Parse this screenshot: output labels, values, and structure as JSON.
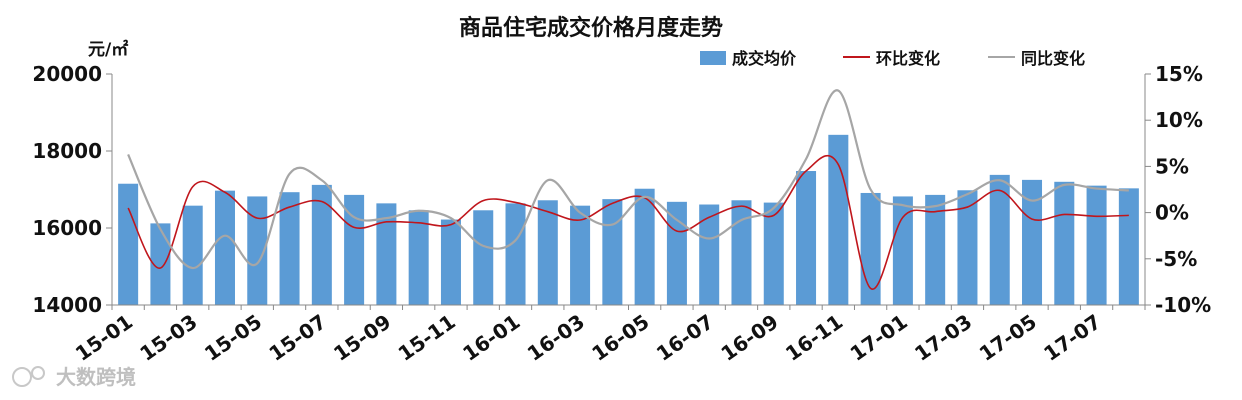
{
  "chart_data": {
    "type": "bar",
    "title": "商品住宅成交价格月度走势",
    "ylabel": "元/㎡",
    "ylim": [
      14000,
      20000
    ],
    "yticks": [
      "14000",
      "16000",
      "18000",
      "20000"
    ],
    "y2lim": [
      -10,
      15
    ],
    "y2ticks": [
      "-10%",
      "-5%",
      "0%",
      "5%",
      "10%",
      "15%"
    ],
    "categories": [
      "15-01",
      "15-02",
      "15-03",
      "15-04",
      "15-05",
      "15-06",
      "15-07",
      "15-08",
      "15-09",
      "15-10",
      "15-11",
      "15-12",
      "16-01",
      "16-02",
      "16-03",
      "16-04",
      "16-05",
      "16-06",
      "16-07",
      "16-08",
      "16-09",
      "16-10",
      "16-11",
      "16-12",
      "17-01",
      "17-02",
      "17-03",
      "17-04",
      "17-05",
      "17-06",
      "17-07",
      "17-08"
    ],
    "xtick_labels": [
      "15-01",
      "15-03",
      "15-05",
      "15-07",
      "15-09",
      "15-11",
      "16-01",
      "16-03",
      "16-05",
      "16-07",
      "16-09",
      "16-11",
      "17-01",
      "17-03",
      "17-05",
      "17-07"
    ],
    "legend": [
      "成交均价",
      "环比变化",
      "同比变化"
    ],
    "legend_position": "top-right",
    "series": [
      {
        "name": "成交均价",
        "type": "bar",
        "axis": "left",
        "color": "#5b9bd5",
        "values": [
          17150,
          16120,
          16580,
          16970,
          16820,
          16930,
          17120,
          16860,
          16640,
          16460,
          16220,
          16460,
          16640,
          16720,
          16580,
          16750,
          17020,
          16680,
          16610,
          16720,
          16660,
          17480,
          18420,
          16910,
          16820,
          16860,
          16980,
          17380,
          17250,
          17200,
          17100,
          17030
        ]
      },
      {
        "name": "环比变化",
        "type": "line",
        "axis": "right",
        "color": "#c0161c",
        "values": [
          0.5,
          -6.0,
          2.8,
          2.2,
          -0.6,
          0.6,
          1.2,
          -1.6,
          -1.0,
          -1.1,
          -1.3,
          1.3,
          1.1,
          0.1,
          -0.8,
          1.0,
          1.6,
          -2.0,
          -0.5,
          0.7,
          -0.3,
          4.5,
          5.2,
          -8.2,
          -0.5,
          0.1,
          0.6,
          2.4,
          -0.7,
          -0.2,
          -0.4,
          -0.3
        ]
      },
      {
        "name": "同比变化",
        "type": "line",
        "axis": "right",
        "color": "#a6a6a6",
        "values": [
          6.3,
          -1.8,
          -6.0,
          -2.5,
          -5.5,
          4.2,
          3.5,
          -0.5,
          -0.6,
          0.2,
          -0.6,
          -3.6,
          -3.0,
          3.5,
          0.0,
          -1.3,
          1.7,
          -0.8,
          -2.8,
          -0.8,
          0.5,
          5.8,
          13.2,
          2.5,
          0.8,
          0.7,
          2.0,
          3.5,
          1.3,
          3.0,
          2.6,
          2.4
        ]
      }
    ],
    "grid": false
  },
  "watermark": "大数跨境"
}
